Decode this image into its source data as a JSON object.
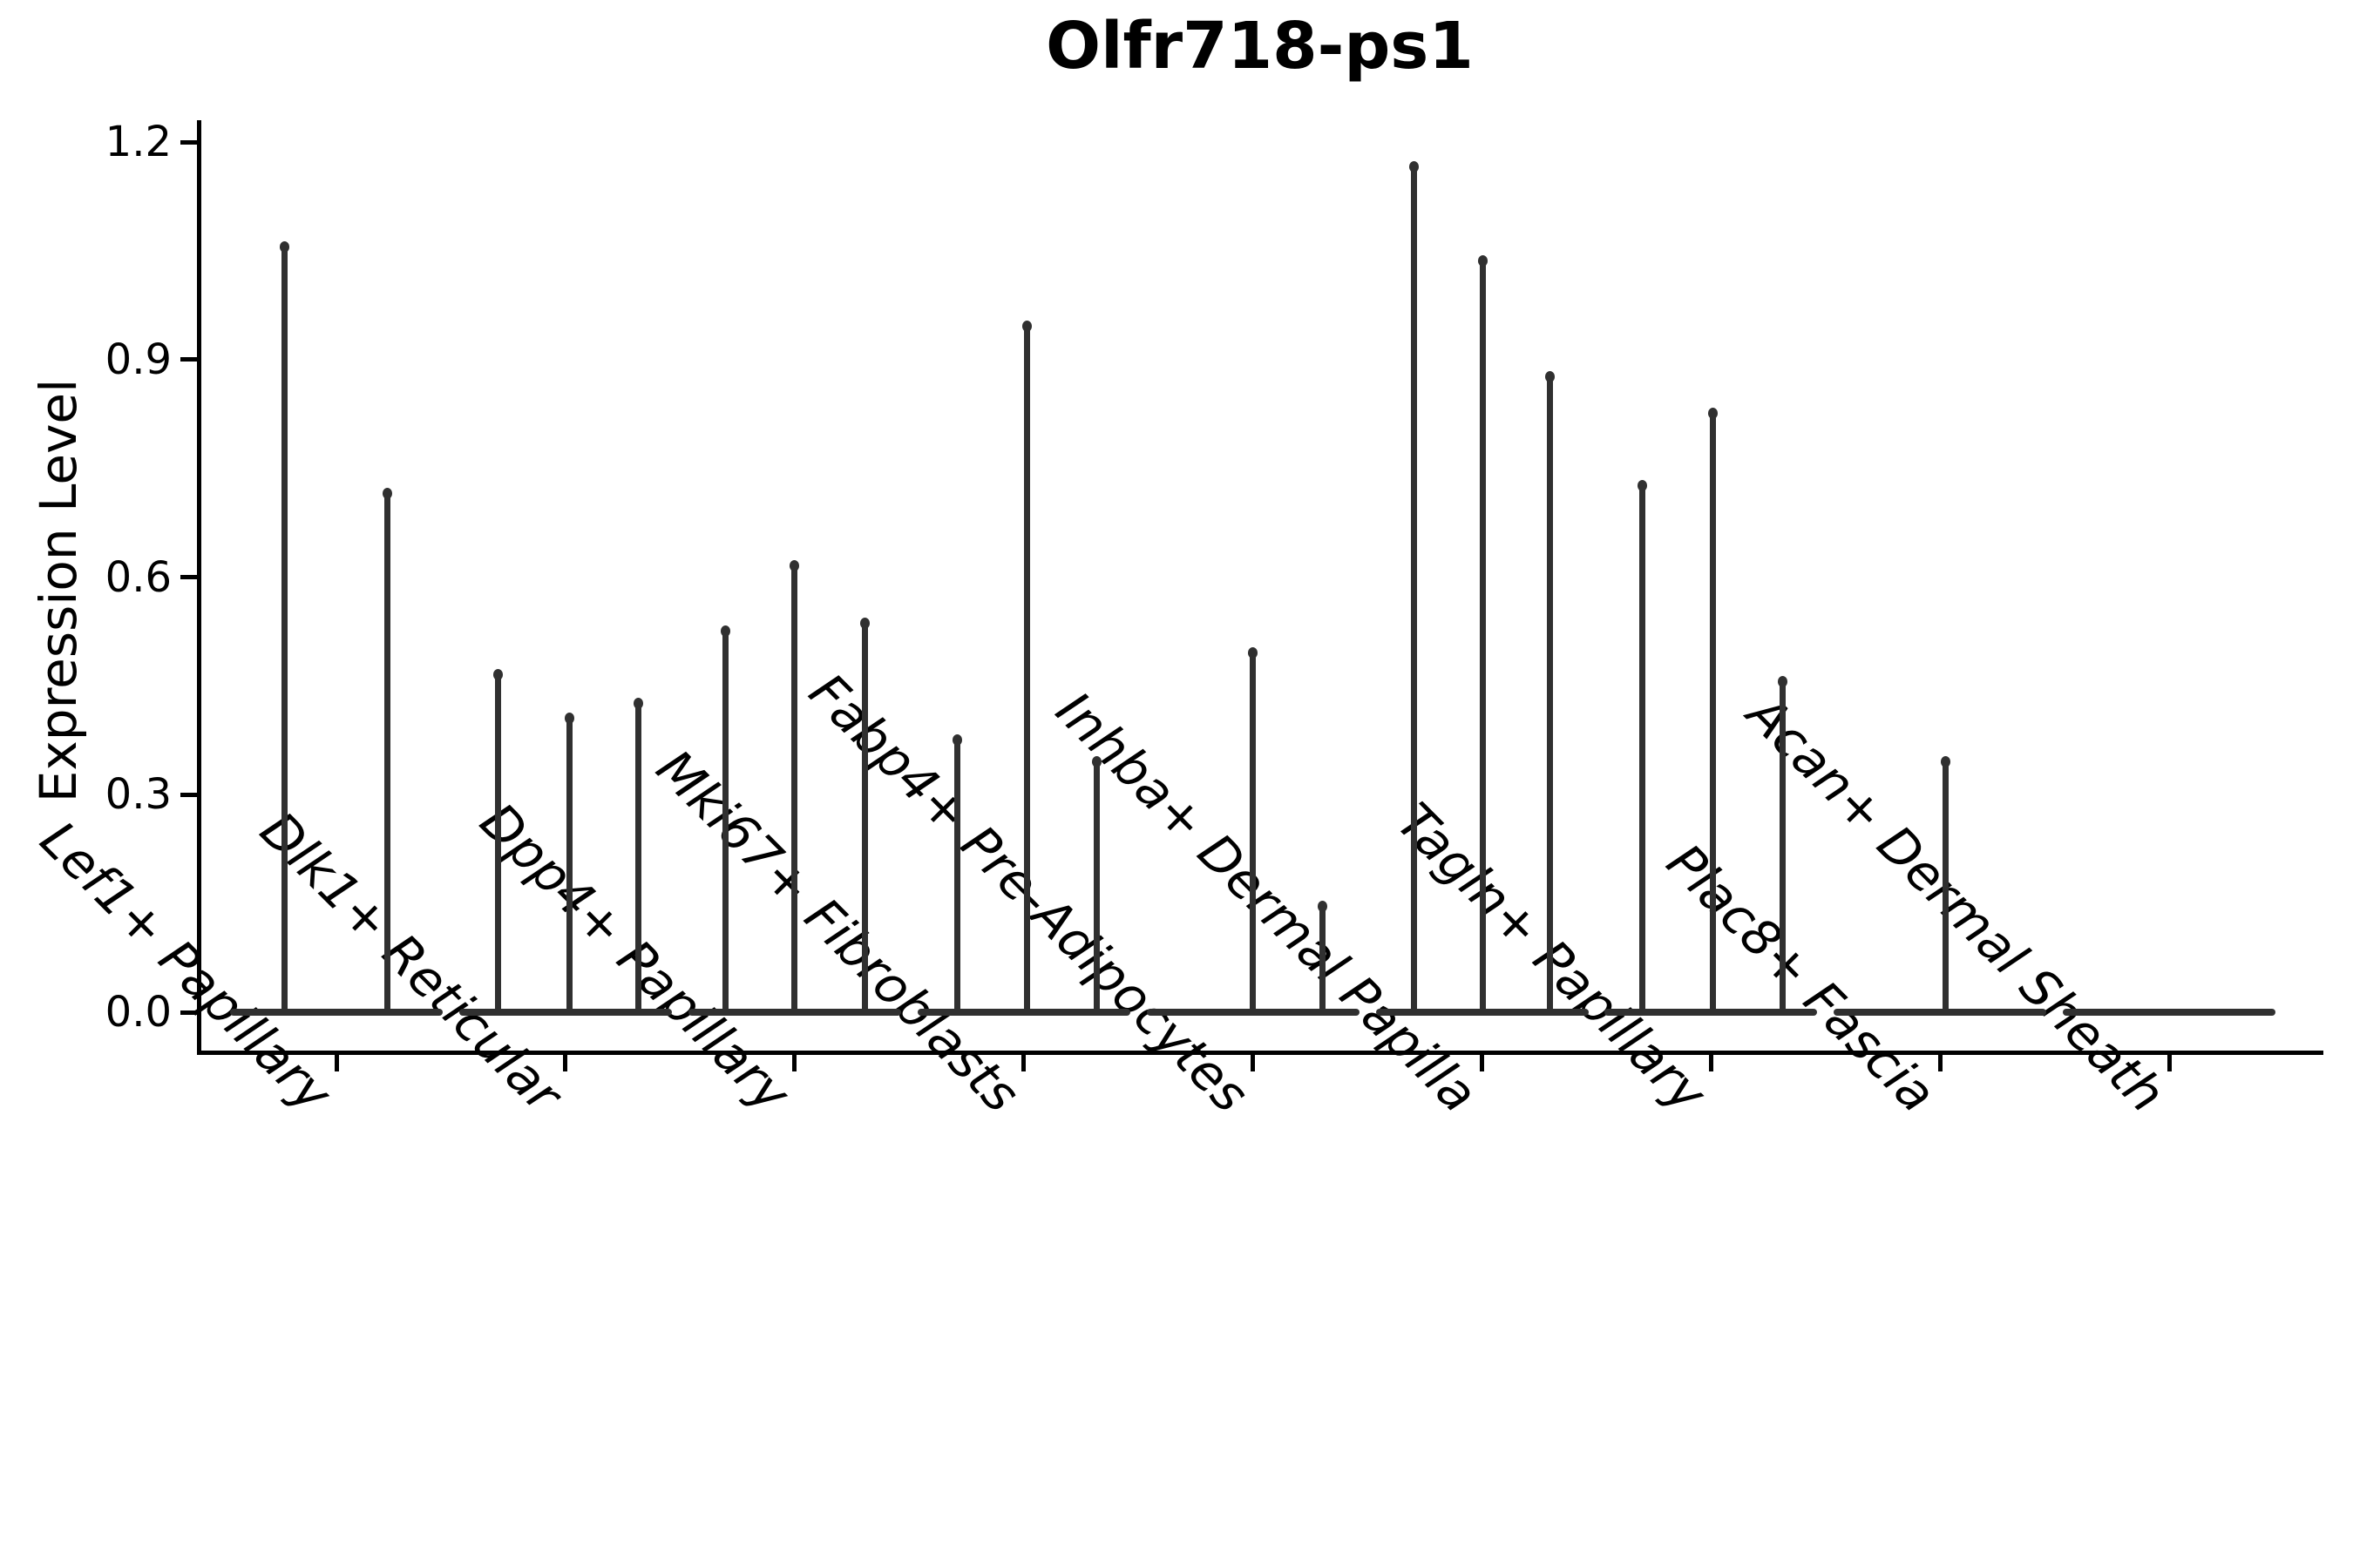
{
  "figure": {
    "title": "Olfr718-ps1",
    "background_color": "#ffffff",
    "ink_color": "#000000",
    "violin_color": "#303030"
  },
  "chart_data": {
    "type": "violin",
    "title": "Olfr718-ps1",
    "xlabel": "",
    "ylabel": "Expression Level",
    "ylim": [
      0,
      1.26
    ],
    "yticks": [
      0.0,
      0.3,
      0.6,
      0.9,
      1.2
    ],
    "grid": false,
    "legend": null,
    "x_tick_label_style": "italic, rotated 45deg, right-anchored",
    "categories": [
      "Lef1+ Papillary",
      "Dlk1+ Reticular",
      "Dpp4+ Papillary",
      "Mki67+ Fibroblasts",
      "Fabp4+ Pre-Adipocytes",
      "Inhba+ Dermal Papilla",
      "Tagln+ Papillary",
      "Plac8+ Fascia",
      "Acan+ Dermal Sheath"
    ],
    "series": [
      {
        "name": "Lef1+ Papillary",
        "baseline_value": 0.0,
        "spikes": [
          {
            "value": 1.06,
            "dx": -60
          },
          {
            "value": 0.72,
            "dx": 58
          }
        ]
      },
      {
        "name": "Dlk1+ Reticular",
        "baseline_value": 0.0,
        "spikes": [
          {
            "value": 0.47,
            "dx": -77
          },
          {
            "value": 0.41,
            "dx": 5
          },
          {
            "value": 0.43,
            "dx": 84
          }
        ]
      },
      {
        "name": "Dpp4+ Papillary",
        "baseline_value": 0.0,
        "spikes": [
          {
            "value": 0.53,
            "dx": -79
          },
          {
            "value": 0.62,
            "dx": 0
          },
          {
            "value": 0.54,
            "dx": 81
          }
        ]
      },
      {
        "name": "Mki67+ Fibroblasts",
        "baseline_value": 0.0,
        "spikes": [
          {
            "value": 0.38,
            "dx": -76
          },
          {
            "value": 0.95,
            "dx": 4
          },
          {
            "value": 0.35,
            "dx": 84
          }
        ]
      },
      {
        "name": "Fabp4+ Pre-Adipocytes",
        "baseline_value": 0.0,
        "spikes": [
          {
            "value": 0.5,
            "dx": 0
          },
          {
            "value": 0.15,
            "dx": 80
          }
        ]
      },
      {
        "name": "Inhba+ Dermal Papilla",
        "baseline_value": 0.0,
        "spikes": [
          {
            "value": 1.17,
            "dx": -78
          },
          {
            "value": 1.04,
            "dx": 1
          },
          {
            "value": 0.88,
            "dx": 78
          }
        ]
      },
      {
        "name": "Tagln+ Papillary",
        "baseline_value": 0.0,
        "spikes": [
          {
            "value": 0.73,
            "dx": -79
          },
          {
            "value": 0.83,
            "dx": 2
          },
          {
            "value": 0.46,
            "dx": 82
          }
        ]
      },
      {
        "name": "Plac8+ Fascia",
        "baseline_value": 0.0,
        "spikes": [
          {
            "value": 0.35,
            "dx": 6
          }
        ]
      },
      {
        "name": "Acan+ Dermal Sheath",
        "baseline_value": 0.0,
        "spikes": []
      }
    ]
  }
}
